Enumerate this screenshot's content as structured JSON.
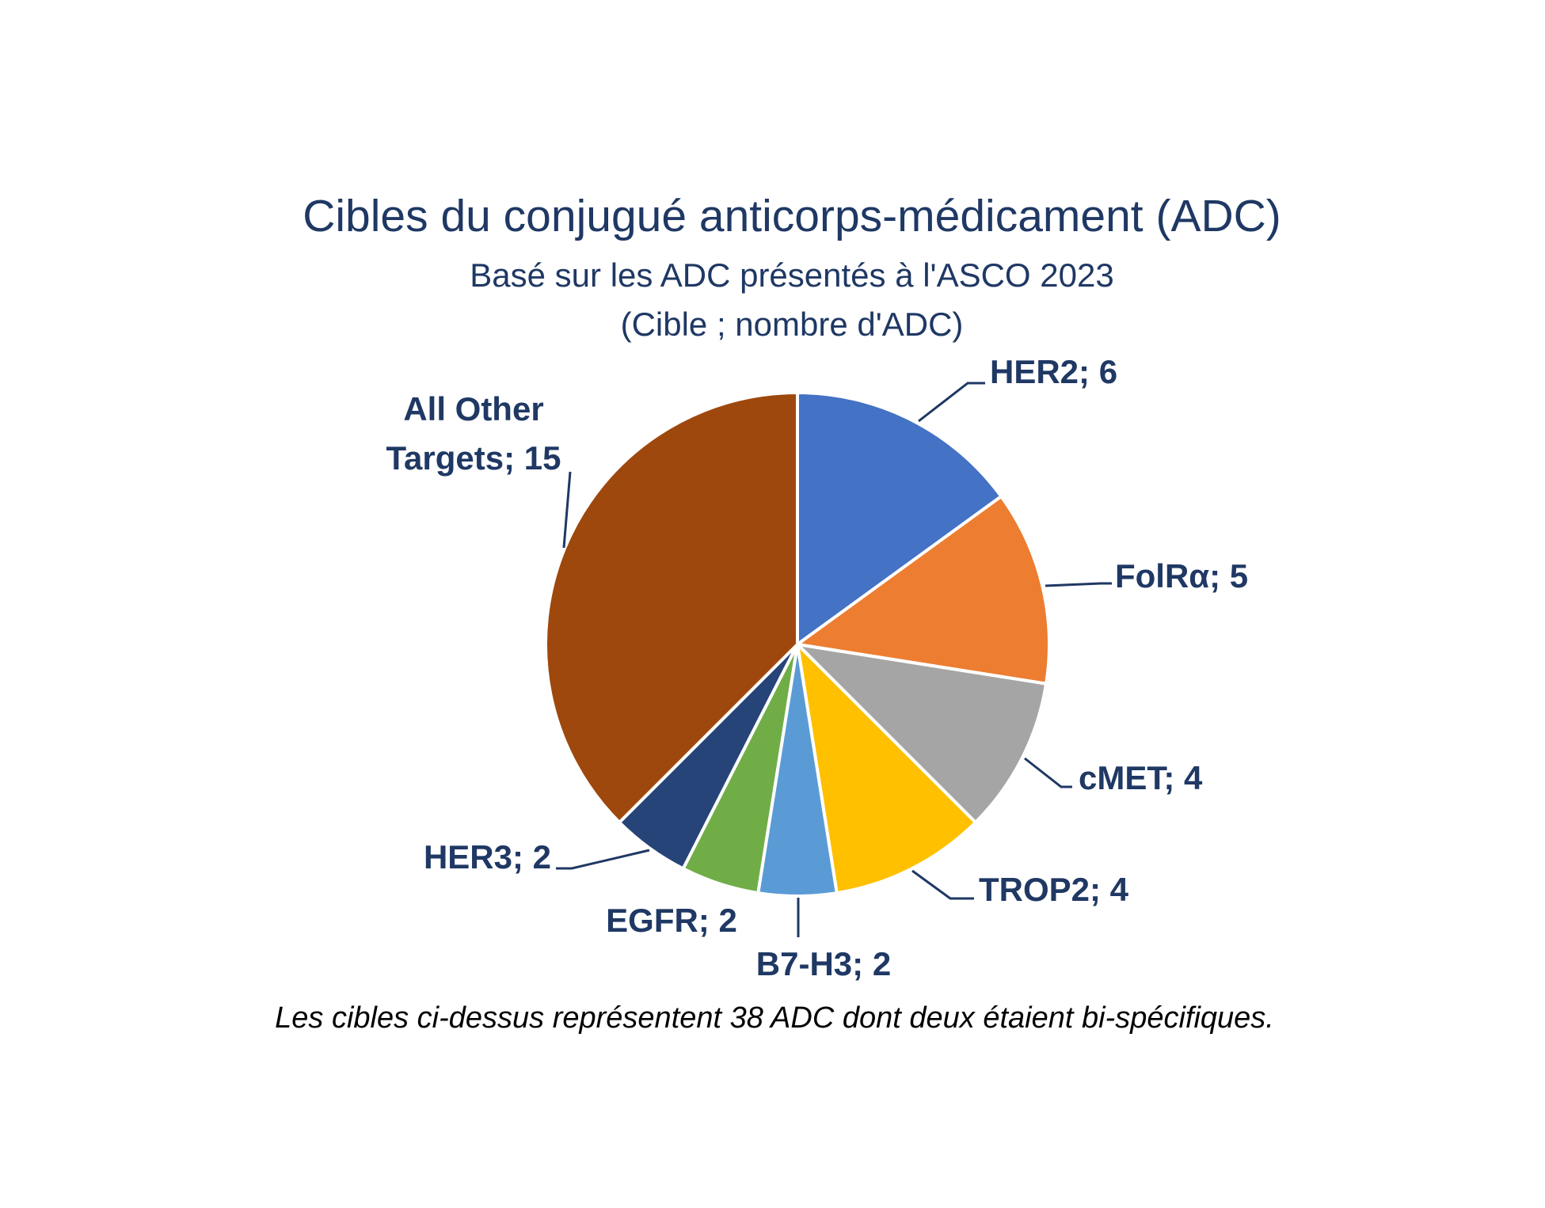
{
  "chart_data": {
    "type": "pie",
    "title": "Cibles du conjugué anticorps-médicament (ADC)",
    "subtitle": "Basé sur les ADC présentés à l'ASCO 2023",
    "subtitle2": "(Cible ; nombre d'ADC)",
    "categories": [
      "HER2",
      "FolRα",
      "cMET",
      "TROP2",
      "B7-H3",
      "EGFR",
      "HER3",
      "All Other Targets"
    ],
    "values": [
      6,
      5,
      4,
      4,
      2,
      2,
      2,
      15
    ],
    "colors": [
      "#4472c4",
      "#ed7d31",
      "#a5a5a5",
      "#ffc000",
      "#5b9bd5",
      "#70ad47",
      "#264478",
      "#9e480e"
    ],
    "labels": [
      "HER2; 6",
      "FolRα; 5",
      "cMET; 4",
      "TROP2; 4",
      "B7-H3; 2",
      "EGFR; 2",
      "HER3; 2",
      [
        "All Other",
        "Targets; 15"
      ]
    ],
    "footnote": "Les cibles ci-dessus représentent 38 ADC dont deux étaient bi-spécifiques."
  }
}
